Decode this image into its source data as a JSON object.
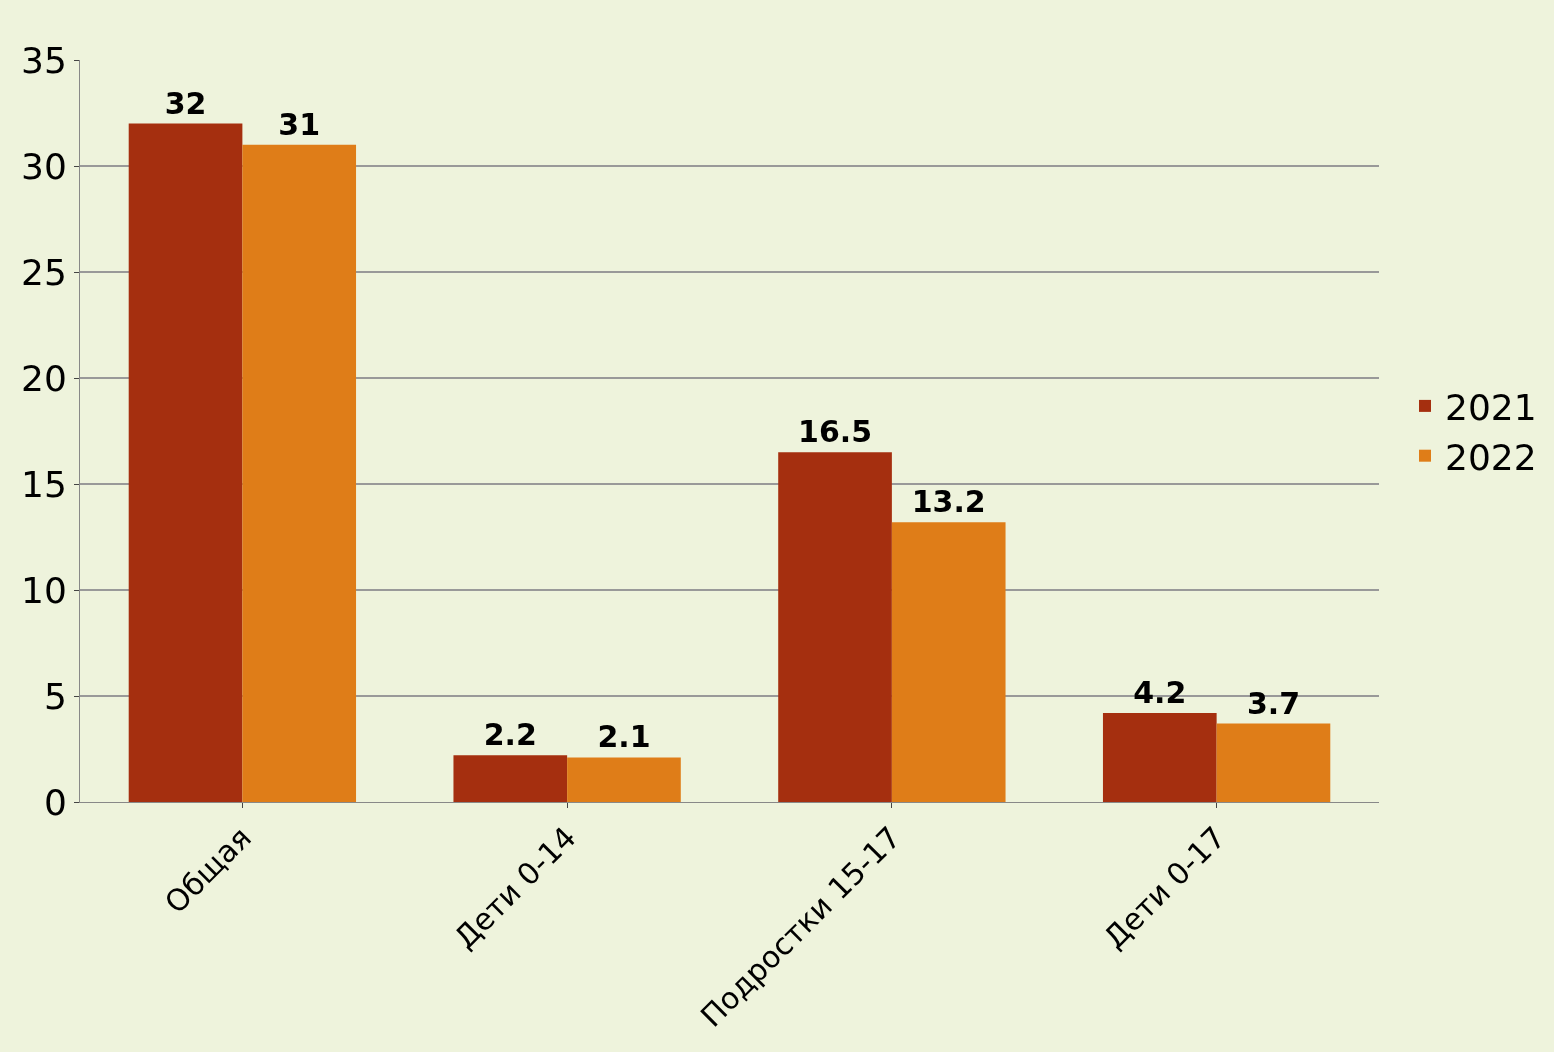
{
  "chart_data": {
    "type": "bar",
    "categories": [
      "Общая",
      "Дети 0-14",
      "Подростки 15-17",
      "Дети 0-17"
    ],
    "series": [
      {
        "name": "2021",
        "color": "#a52f0f",
        "values": [
          32,
          2.2,
          16.5,
          4.2
        ]
      },
      {
        "name": "2022",
        "color": "#df7d18",
        "values": [
          31,
          2.1,
          13.2,
          3.7
        ]
      }
    ],
    "ylim": [
      0,
      35
    ],
    "yticks": [
      0,
      5,
      10,
      15,
      20,
      25,
      30,
      35
    ],
    "grid": "y",
    "legend": "right",
    "data_labels": true
  }
}
